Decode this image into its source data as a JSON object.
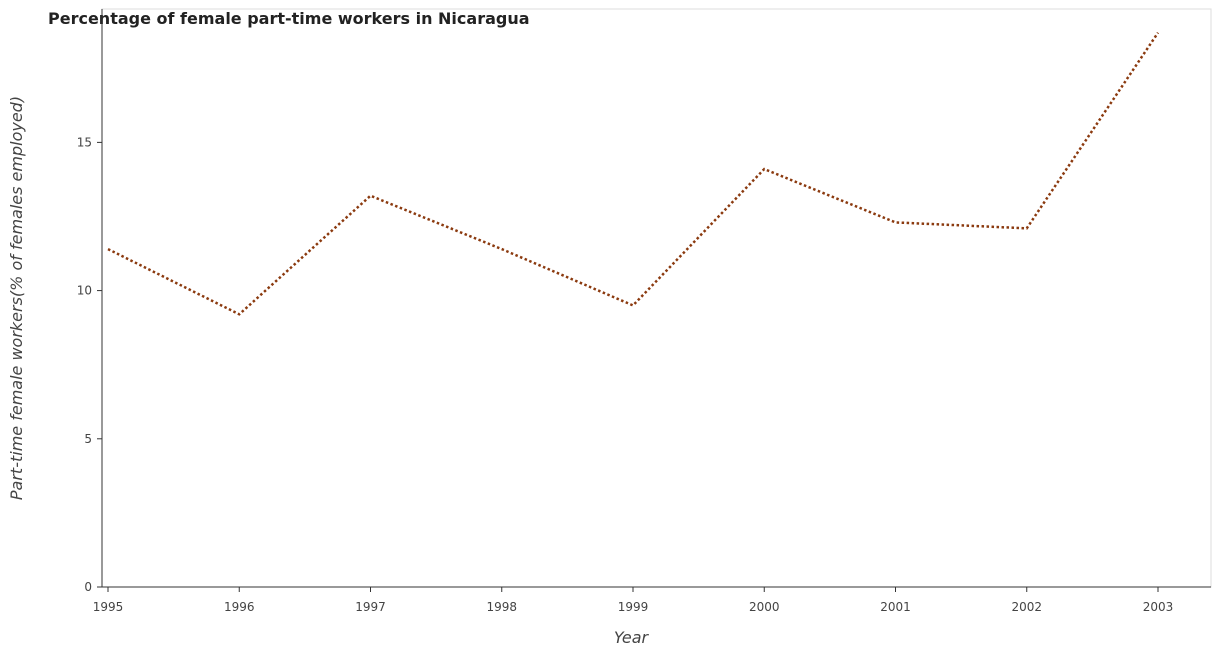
{
  "chart_data": {
    "type": "line",
    "title": "Percentage of female part-time workers in Nicaragua",
    "xlabel": "Year",
    "ylabel": "Part-time female workers(% of females employed)",
    "categories": [
      "1995",
      "1996",
      "1997",
      "1998",
      "1999",
      "2000",
      "2001",
      "2002",
      "2003"
    ],
    "series": [
      {
        "values": [
          11.4,
          9.2,
          13.2,
          11.4,
          9.5,
          14.1,
          12.3,
          12.1,
          18.7
        ]
      }
    ],
    "y_ticks": [
      "0",
      "5",
      "10",
      "15"
    ],
    "ylim": [
      0,
      19.5
    ],
    "line_color": "#8b3a0f",
    "line_style": "dotted",
    "grid": false,
    "legend": "none"
  }
}
